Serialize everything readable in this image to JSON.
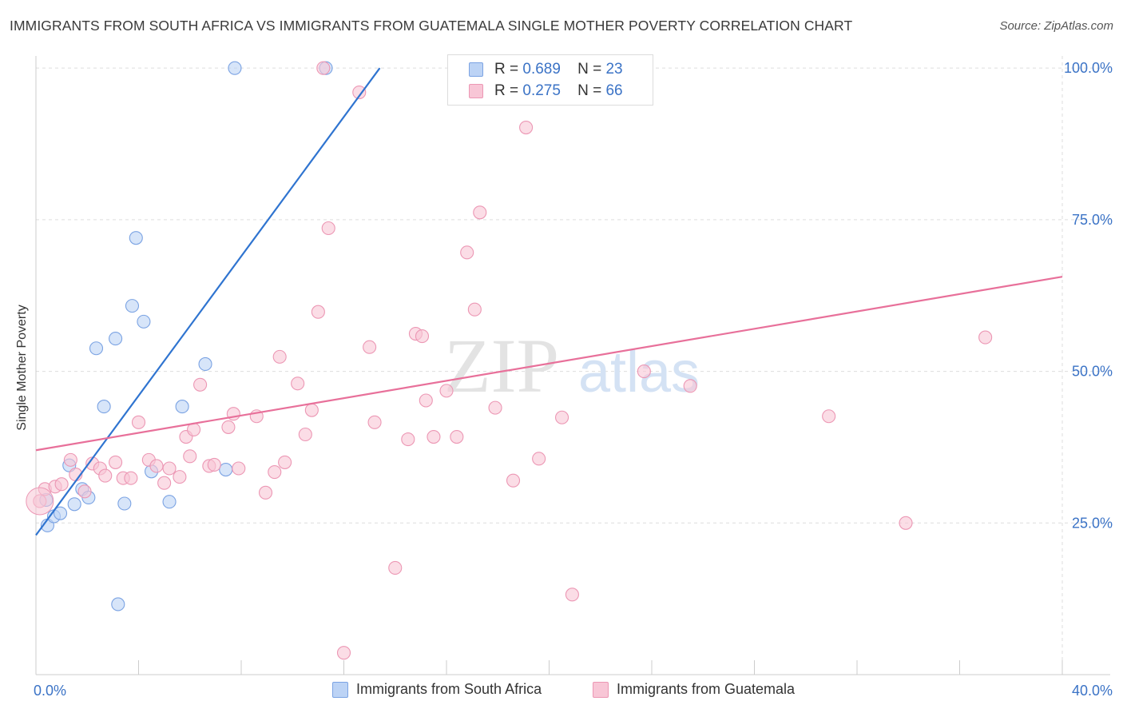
{
  "title": "IMMIGRANTS FROM SOUTH AFRICA VS IMMIGRANTS FROM GUATEMALA SINGLE MOTHER POVERTY CORRELATION CHART",
  "source": "Source: ZipAtlas.com",
  "watermark": {
    "zip": "ZIP",
    "atlas": "atlas"
  },
  "legend": {
    "r_label": "R =",
    "n_label": "N =",
    "items": [
      {
        "name": "Immigrants from South Africa",
        "r": "0.689",
        "n": "23",
        "fill": "#bcd3f5",
        "stroke": "#7ba3e3"
      },
      {
        "name": "Immigrants from Guatemala",
        "r": "0.275",
        "n": "66",
        "fill": "#f8c6d6",
        "stroke": "#ec97b4"
      }
    ]
  },
  "colors": {
    "blue_line": "#2f74d0",
    "pink_line": "#e8709a",
    "axis_tick_text": "#3b73c6",
    "grid": "#dddddd"
  },
  "chart_data": {
    "type": "scatter",
    "title": "IMMIGRANTS FROM SOUTH AFRICA VS IMMIGRANTS FROM GUATEMALA SINGLE MOTHER POVERTY CORRELATION CHART",
    "ylabel": "Single Mother Poverty",
    "xlim": [
      0,
      40
    ],
    "ylim": [
      0,
      102
    ],
    "x_tick_labels": [
      {
        "value": 0,
        "label": "0.0%"
      },
      {
        "value": 40,
        "label": "40.0%"
      }
    ],
    "y_tick_labels": [
      {
        "value": 25,
        "label": "25.0%"
      },
      {
        "value": 50,
        "label": "50.0%"
      },
      {
        "value": 75,
        "label": "75.0%"
      },
      {
        "value": 100,
        "label": "100.0%"
      }
    ],
    "grid": true,
    "series": [
      {
        "name": "Immigrants from South Africa",
        "points": [
          [
            0.4,
            28.8
          ],
          [
            0.45,
            24.6
          ],
          [
            0.7,
            26.1
          ],
          [
            0.95,
            26.6
          ],
          [
            1.3,
            34.5
          ],
          [
            1.5,
            28.1
          ],
          [
            1.8,
            30.6
          ],
          [
            2.05,
            29.2
          ],
          [
            2.35,
            53.8
          ],
          [
            2.65,
            44.2
          ],
          [
            3.1,
            55.4
          ],
          [
            3.2,
            11.6
          ],
          [
            3.45,
            28.2
          ],
          [
            3.75,
            60.8
          ],
          [
            3.9,
            72.0
          ],
          [
            4.2,
            58.2
          ],
          [
            4.5,
            33.5
          ],
          [
            5.2,
            28.5
          ],
          [
            5.7,
            44.2
          ],
          [
            6.6,
            51.2
          ],
          [
            7.4,
            33.8
          ],
          [
            7.75,
            100.0
          ],
          [
            11.3,
            100.0
          ]
        ],
        "trend": [
          [
            0,
            23.0
          ],
          [
            13.4,
            100.0
          ]
        ]
      },
      {
        "name": "Immigrants from Guatemala",
        "points": [
          [
            0.15,
            28.6
          ],
          [
            0.35,
            30.6
          ],
          [
            0.75,
            31.0
          ],
          [
            1.0,
            31.4
          ],
          [
            1.35,
            35.4
          ],
          [
            1.55,
            33.0
          ],
          [
            1.9,
            30.2
          ],
          [
            2.2,
            34.8
          ],
          [
            2.5,
            34.0
          ],
          [
            2.7,
            32.8
          ],
          [
            3.1,
            35.0
          ],
          [
            3.4,
            32.4
          ],
          [
            3.7,
            32.4
          ],
          [
            4.0,
            41.6
          ],
          [
            4.4,
            35.4
          ],
          [
            4.7,
            34.4
          ],
          [
            5.0,
            31.6
          ],
          [
            5.2,
            34.0
          ],
          [
            5.6,
            32.6
          ],
          [
            5.85,
            39.2
          ],
          [
            6.15,
            40.4
          ],
          [
            6.4,
            47.8
          ],
          [
            6.75,
            34.4
          ],
          [
            6.95,
            34.6
          ],
          [
            7.5,
            40.8
          ],
          [
            7.7,
            43.0
          ],
          [
            7.9,
            34.0
          ],
          [
            8.6,
            42.6
          ],
          [
            8.95,
            30.0
          ],
          [
            9.3,
            33.4
          ],
          [
            9.5,
            52.4
          ],
          [
            9.7,
            35.0
          ],
          [
            10.2,
            48.0
          ],
          [
            10.5,
            39.6
          ],
          [
            10.75,
            43.6
          ],
          [
            11.0,
            59.8
          ],
          [
            11.2,
            100.0
          ],
          [
            11.4,
            73.6
          ],
          [
            12.6,
            96.0
          ],
          [
            13.0,
            54.0
          ],
          [
            13.2,
            41.6
          ],
          [
            14.0,
            17.6
          ],
          [
            14.5,
            38.8
          ],
          [
            14.8,
            56.2
          ],
          [
            15.05,
            55.8
          ],
          [
            15.2,
            45.2
          ],
          [
            15.5,
            39.2
          ],
          [
            16.4,
            39.2
          ],
          [
            16.8,
            69.6
          ],
          [
            17.1,
            60.2
          ],
          [
            17.3,
            76.2
          ],
          [
            17.9,
            44.0
          ],
          [
            18.6,
            32.0
          ],
          [
            18.9,
            95.0
          ],
          [
            19.1,
            90.2
          ],
          [
            19.6,
            35.6
          ],
          [
            20.5,
            42.4
          ],
          [
            20.9,
            13.2
          ],
          [
            23.7,
            50.0
          ],
          [
            25.5,
            47.6
          ],
          [
            30.9,
            42.6
          ],
          [
            33.9,
            25.0
          ],
          [
            37.0,
            55.6
          ],
          [
            12.0,
            3.6
          ],
          [
            16.0,
            46.8
          ],
          [
            6.0,
            36.0
          ]
        ],
        "trend": [
          [
            0,
            37.0
          ],
          [
            40,
            65.6
          ]
        ]
      }
    ]
  }
}
